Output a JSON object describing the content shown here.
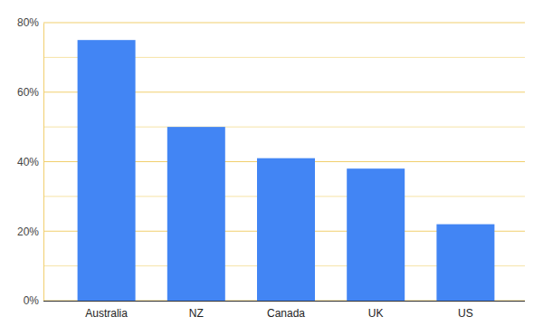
{
  "chart_data": {
    "type": "bar",
    "categories": [
      "Australia",
      "NZ",
      "Canada",
      "UK",
      "US"
    ],
    "values": [
      75,
      50,
      41,
      38,
      22
    ],
    "color": "#4285f4",
    "ylim": [
      0,
      80
    ],
    "yticks": [
      {
        "value": 0,
        "label": "0%"
      },
      {
        "value": 20,
        "label": "20%"
      },
      {
        "value": 40,
        "label": "40%"
      },
      {
        "value": 60,
        "label": "60%"
      },
      {
        "value": 80,
        "label": "80%"
      }
    ],
    "grid": true
  }
}
